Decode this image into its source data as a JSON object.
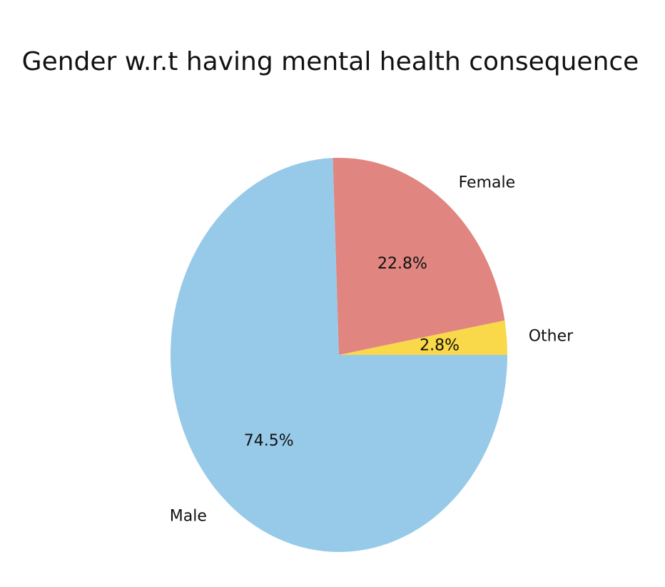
{
  "chart_data": {
    "type": "pie",
    "title": "Gender w.r.t having mental health consequence",
    "categories": [
      "Male",
      "Female",
      "Other"
    ],
    "values": [
      74.5,
      22.8,
      2.8
    ],
    "value_labels": [
      "74.5%",
      "22.8%",
      "2.8%"
    ],
    "colors": [
      "#97CAE8",
      "#E08580",
      "#F9D849"
    ],
    "legend": "none"
  }
}
